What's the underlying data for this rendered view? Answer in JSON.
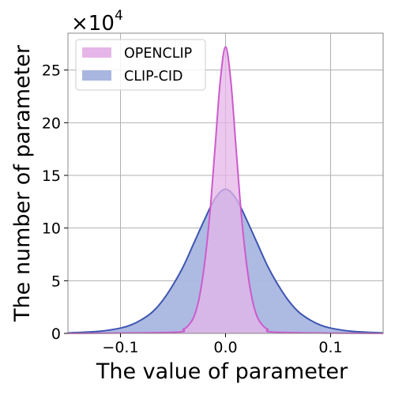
{
  "chart_data": {
    "type": "area",
    "xlabel": "The value of parameter",
    "ylabel": "The number of parameter",
    "y_offset_label": "×10",
    "y_offset_exponent": "4",
    "xlim": [
      -0.15,
      0.15
    ],
    "ylim": [
      0,
      28.5
    ],
    "y_scale": 10000,
    "x_ticks": [
      -0.1,
      0.0,
      0.1
    ],
    "x_tick_labels": [
      "−0.1",
      "0.0",
      "0.1"
    ],
    "y_ticks": [
      0,
      5,
      10,
      15,
      20,
      25
    ],
    "y_tick_labels": [
      "0",
      "5",
      "10",
      "15",
      "20",
      "25"
    ],
    "grid": true,
    "legend_position": "upper-left",
    "series": [
      {
        "name": "OPENCLIP",
        "fill": "#e6b6e8",
        "line": "#cc5bcc",
        "x": [
          -0.15,
          -0.05,
          -0.04,
          -0.035,
          -0.03,
          -0.025,
          -0.02,
          -0.015,
          -0.01,
          -0.005,
          0.0,
          0.005,
          0.01,
          0.015,
          0.02,
          0.025,
          0.03,
          0.035,
          0.04,
          0.05,
          0.15
        ],
        "y": [
          0,
          0.1,
          0.4,
          0.8,
          1.6,
          3.4,
          6.6,
          11.3,
          17.6,
          24.0,
          27.2,
          24.0,
          17.6,
          11.3,
          6.6,
          3.4,
          1.6,
          0.8,
          0.4,
          0.1,
          0
        ]
      },
      {
        "name": "CLIP-CID",
        "fill": "#a9b6e0",
        "line": "#3d55b0",
        "x": [
          -0.15,
          -0.12,
          -0.1,
          -0.09,
          -0.08,
          -0.07,
          -0.06,
          -0.05,
          -0.04,
          -0.03,
          -0.02,
          -0.01,
          0.0,
          0.01,
          0.02,
          0.03,
          0.04,
          0.05,
          0.06,
          0.07,
          0.08,
          0.09,
          0.1,
          0.12,
          0.15
        ],
        "y": [
          0.05,
          0.2,
          0.5,
          0.8,
          1.3,
          2.0,
          3.1,
          4.6,
          6.4,
          8.6,
          10.8,
          12.8,
          13.7,
          12.8,
          10.8,
          8.6,
          6.4,
          4.6,
          3.1,
          2.0,
          1.3,
          0.8,
          0.5,
          0.2,
          0.05
        ]
      }
    ]
  },
  "colors": {
    "openclip_fill": "#e6b6e8",
    "openclip_line": "#cc5bcc",
    "clipcid_fill": "#a9b6e0",
    "clipcid_line": "#3d55b0",
    "grid": "#b0b0b0",
    "frame": "#888888"
  }
}
